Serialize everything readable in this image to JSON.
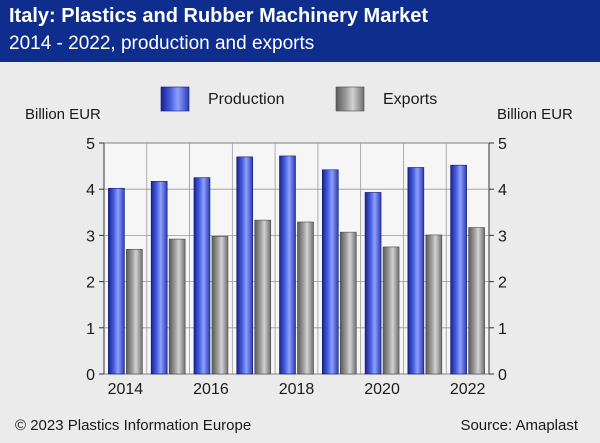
{
  "header": {
    "title": "Italy: Plastics and Rubber Machinery Market",
    "subtitle": "2014 - 2022, production and exports"
  },
  "footer": {
    "copyright": "© 2023 Plastics Information Europe",
    "source": "Source: Amaplast"
  },
  "colors": {
    "header_bg": "#0f2d8c",
    "production": "#3a4fd0",
    "exports": "#8a8a8a",
    "background": "#ecebeb"
  },
  "chart_data": {
    "type": "bar",
    "categories": [
      "2014",
      "2015",
      "2016",
      "2017",
      "2018",
      "2019",
      "2020",
      "2021",
      "2022"
    ],
    "x_tick_labels": [
      "2014",
      "2016",
      "2018",
      "2020",
      "2022"
    ],
    "series": [
      {
        "name": "Production",
        "values": [
          4.02,
          4.17,
          4.25,
          4.7,
          4.72,
          4.42,
          3.93,
          4.47,
          4.52
        ]
      },
      {
        "name": "Exports",
        "values": [
          2.7,
          2.92,
          2.98,
          3.33,
          3.29,
          3.07,
          2.75,
          3.01,
          3.17
        ]
      }
    ],
    "ylabel_left": "Billion EUR",
    "ylabel_right": "Billion EUR",
    "y_ticks": [
      0,
      1,
      2,
      3,
      4,
      5
    ],
    "ylim": [
      0,
      5
    ],
    "grid": true,
    "legend_position": "top"
  }
}
